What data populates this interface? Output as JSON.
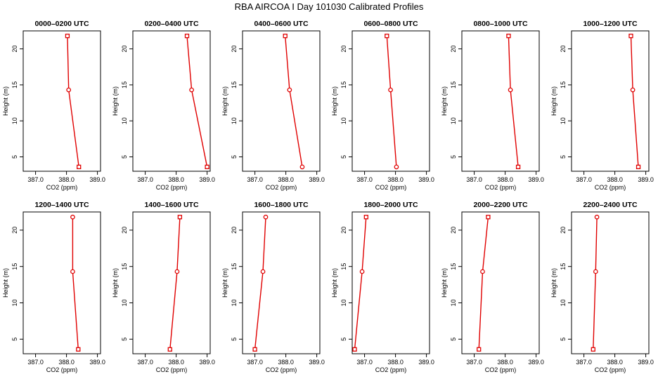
{
  "page_title": "RBA AIRCOA I  Day 101030  Calibrated Profiles",
  "series_color": "#e00000",
  "chart_data": [
    {
      "type": "line",
      "title": "0000–0200 UTC",
      "xlabel": "CO2 (ppm)",
      "ylabel": "Height (m)",
      "xlim": [
        386.6,
        389.1
      ],
      "ylim": [
        3,
        22.5
      ],
      "xticks": [
        387.0,
        388.0,
        389.0
      ],
      "yticks": [
        5,
        10,
        15,
        20
      ],
      "x": [
        388.03,
        388.07,
        388.4
      ],
      "y": [
        21.8,
        14.3,
        3.6
      ],
      "markers": [
        "square",
        "circle",
        "square"
      ]
    },
    {
      "type": "line",
      "title": "0200–0400 UTC",
      "xlabel": "CO2 (ppm)",
      "ylabel": "Height (m)",
      "xlim": [
        386.6,
        389.1
      ],
      "ylim": [
        3,
        22.5
      ],
      "xticks": [
        387.0,
        388.0,
        389.0
      ],
      "yticks": [
        5,
        10,
        15,
        20
      ],
      "x": [
        388.35,
        388.5,
        389.0
      ],
      "y": [
        21.8,
        14.3,
        3.6
      ],
      "markers": [
        "square",
        "circle",
        "square"
      ]
    },
    {
      "type": "line",
      "title": "0400–0600 UTC",
      "xlabel": "CO2 (ppm)",
      "ylabel": "Height (m)",
      "xlim": [
        386.6,
        389.1
      ],
      "ylim": [
        3,
        22.5
      ],
      "xticks": [
        387.0,
        388.0,
        389.0
      ],
      "yticks": [
        5,
        10,
        15,
        20
      ],
      "x": [
        387.98,
        388.12,
        388.53
      ],
      "y": [
        21.8,
        14.3,
        3.6
      ],
      "markers": [
        "square",
        "circle",
        "circle"
      ]
    },
    {
      "type": "line",
      "title": "0600–0800 UTC",
      "xlabel": "CO2 (ppm)",
      "ylabel": "Height (m)",
      "xlim": [
        386.6,
        389.1
      ],
      "ylim": [
        3,
        22.5
      ],
      "xticks": [
        387.0,
        388.0,
        389.0
      ],
      "yticks": [
        5,
        10,
        15,
        20
      ],
      "x": [
        387.72,
        387.84,
        388.03
      ],
      "y": [
        21.8,
        14.3,
        3.6
      ],
      "markers": [
        "square",
        "circle",
        "circle"
      ]
    },
    {
      "type": "line",
      "title": "0800–1000 UTC",
      "xlabel": "CO2 (ppm)",
      "ylabel": "Height (m)",
      "xlim": [
        386.6,
        389.1
      ],
      "ylim": [
        3,
        22.5
      ],
      "xticks": [
        387.0,
        388.0,
        389.0
      ],
      "yticks": [
        5,
        10,
        15,
        20
      ],
      "x": [
        388.11,
        388.17,
        388.42
      ],
      "y": [
        21.8,
        14.3,
        3.6
      ],
      "markers": [
        "square",
        "circle",
        "square"
      ]
    },
    {
      "type": "line",
      "title": "1000–1200 UTC",
      "xlabel": "CO2 (ppm)",
      "ylabel": "Height (m)",
      "xlim": [
        386.6,
        389.1
      ],
      "ylim": [
        3,
        22.5
      ],
      "xticks": [
        387.0,
        388.0,
        389.0
      ],
      "yticks": [
        5,
        10,
        15,
        20
      ],
      "x": [
        388.52,
        388.58,
        388.76
      ],
      "y": [
        21.8,
        14.3,
        3.6
      ],
      "markers": [
        "square",
        "circle",
        "square"
      ]
    },
    {
      "type": "line",
      "title": "1200–1400 UTC",
      "xlabel": "CO2 (ppm)",
      "ylabel": "Height (m)",
      "xlim": [
        386.6,
        389.1
      ],
      "ylim": [
        3,
        22.5
      ],
      "xticks": [
        387.0,
        388.0,
        389.0
      ],
      "yticks": [
        5,
        10,
        15,
        20
      ],
      "x": [
        388.2,
        388.2,
        388.38
      ],
      "y": [
        21.8,
        14.3,
        3.6
      ],
      "markers": [
        "circle",
        "circle",
        "square"
      ]
    },
    {
      "type": "line",
      "title": "1400–1600 UTC",
      "xlabel": "CO2 (ppm)",
      "ylabel": "Height (m)",
      "xlim": [
        386.6,
        389.1
      ],
      "ylim": [
        3,
        22.5
      ],
      "xticks": [
        387.0,
        388.0,
        389.0
      ],
      "yticks": [
        5,
        10,
        15,
        20
      ],
      "x": [
        388.12,
        388.03,
        387.8
      ],
      "y": [
        21.8,
        14.3,
        3.6
      ],
      "markers": [
        "square",
        "circle",
        "square"
      ]
    },
    {
      "type": "line",
      "title": "1600–1800 UTC",
      "xlabel": "CO2 (ppm)",
      "ylabel": "Height (m)",
      "xlim": [
        386.6,
        389.1
      ],
      "ylim": [
        3,
        22.5
      ],
      "xticks": [
        387.0,
        388.0,
        389.0
      ],
      "yticks": [
        5,
        10,
        15,
        20
      ],
      "x": [
        387.35,
        387.26,
        387.0
      ],
      "y": [
        21.8,
        14.3,
        3.6
      ],
      "markers": [
        "circle",
        "circle",
        "square"
      ]
    },
    {
      "type": "line",
      "title": "1800–2000 UTC",
      "xlabel": "CO2 (ppm)",
      "ylabel": "Height (m)",
      "xlim": [
        386.6,
        389.1
      ],
      "ylim": [
        3,
        22.5
      ],
      "xticks": [
        387.0,
        388.0,
        389.0
      ],
      "yticks": [
        5,
        10,
        15,
        20
      ],
      "x": [
        387.05,
        386.92,
        386.68
      ],
      "y": [
        21.8,
        14.3,
        3.6
      ],
      "markers": [
        "square",
        "circle",
        "square"
      ]
    },
    {
      "type": "line",
      "title": "2000–2200 UTC",
      "xlabel": "CO2 (ppm)",
      "ylabel": "Height (m)",
      "xlim": [
        386.6,
        389.1
      ],
      "ylim": [
        3,
        22.5
      ],
      "xticks": [
        387.0,
        388.0,
        389.0
      ],
      "yticks": [
        5,
        10,
        15,
        20
      ],
      "x": [
        387.45,
        387.27,
        387.15
      ],
      "y": [
        21.8,
        14.3,
        3.6
      ],
      "markers": [
        "square",
        "circle",
        "square"
      ]
    },
    {
      "type": "line",
      "title": "2200–2400 UTC",
      "xlabel": "CO2 (ppm)",
      "ylabel": "Height (m)",
      "xlim": [
        386.6,
        389.1
      ],
      "ylim": [
        3,
        22.5
      ],
      "xticks": [
        387.0,
        388.0,
        389.0
      ],
      "yticks": [
        5,
        10,
        15,
        20
      ],
      "x": [
        387.42,
        387.38,
        387.3
      ],
      "y": [
        21.8,
        14.3,
        3.6
      ],
      "markers": [
        "circle",
        "circle",
        "square"
      ]
    }
  ]
}
